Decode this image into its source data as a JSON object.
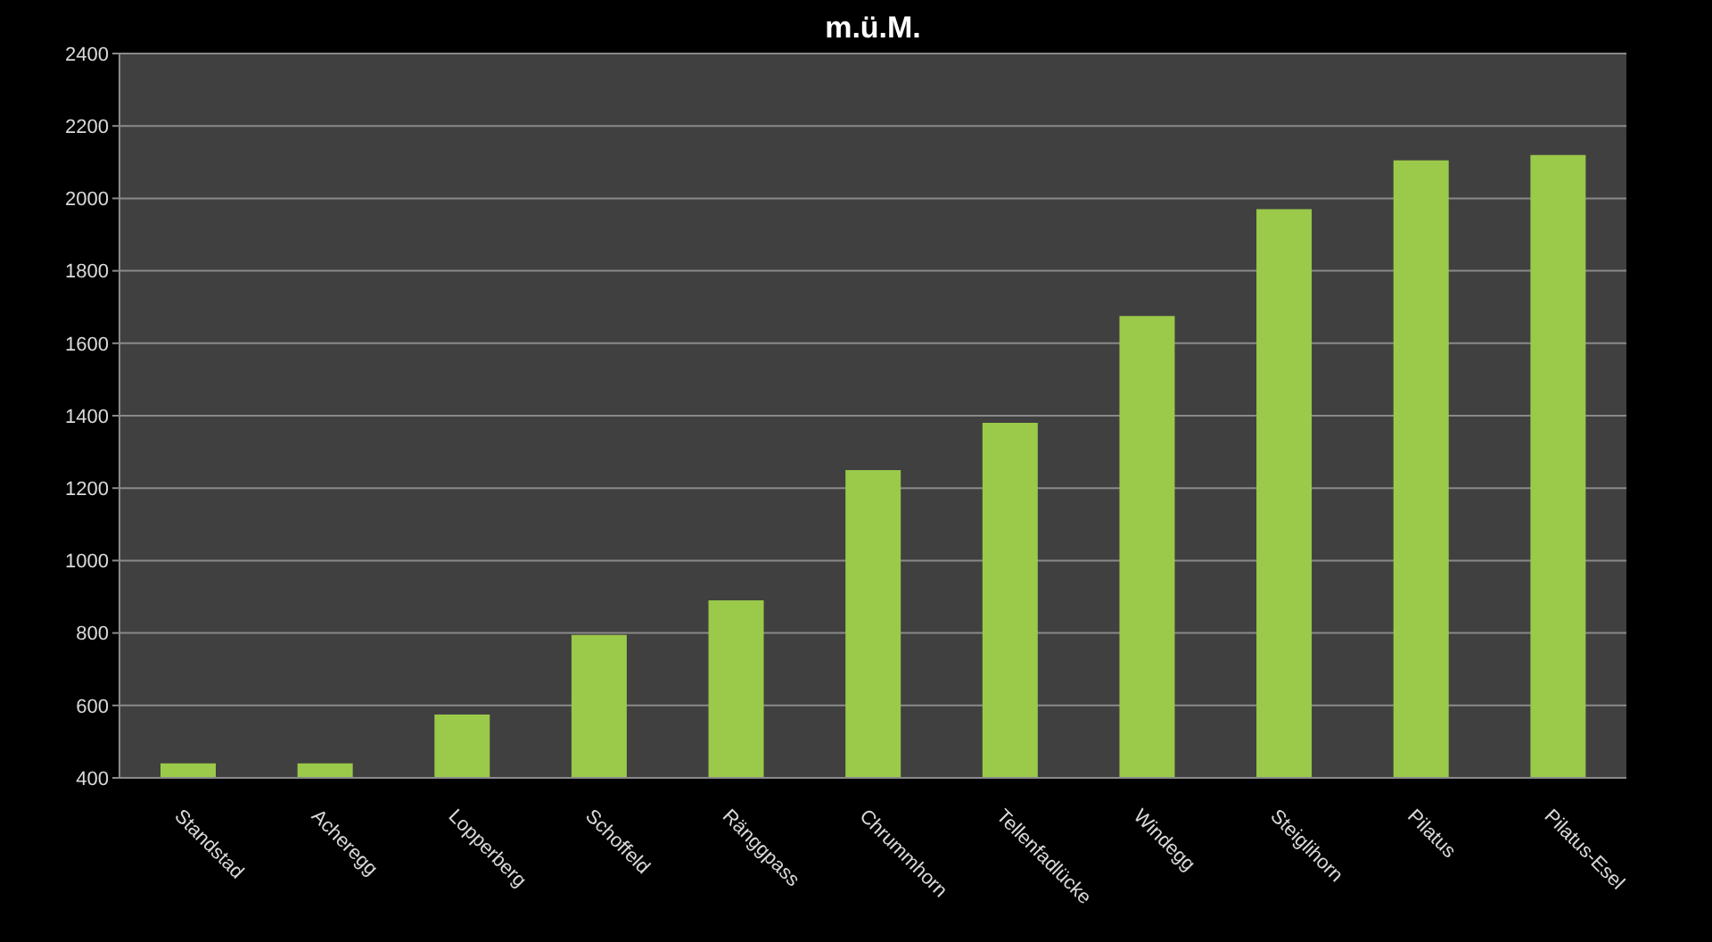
{
  "chart_data": {
    "type": "bar",
    "title": "m.ü.M.",
    "categories": [
      "Standstad",
      "Acheregg",
      "Lopperberg",
      "Schoffeld",
      "Ränggpass",
      "Chrummhorn",
      "Tellenfadlücke",
      "Windegg",
      "Steiglihorn",
      "Pilatus",
      "Pilatus-Esel"
    ],
    "values": [
      440,
      440,
      575,
      795,
      890,
      1250,
      1380,
      1675,
      1970,
      2105,
      2120
    ],
    "color": "#9bc94a",
    "ylim": [
      400,
      2400
    ],
    "yticks": [
      400,
      600,
      800,
      1000,
      1200,
      1400,
      1600,
      1800,
      2000,
      2200,
      2400
    ],
    "grid": "y"
  }
}
